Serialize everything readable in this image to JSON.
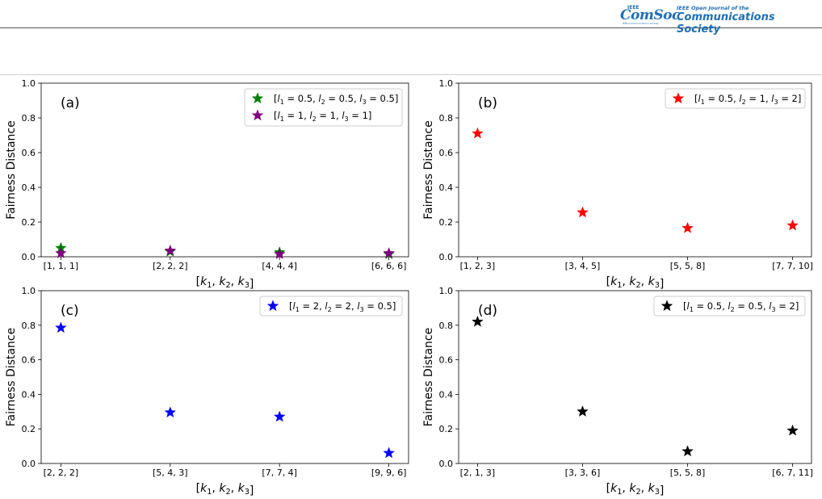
{
  "header": {
    "logo_ieee": "IEEE",
    "logo_comsoc": "ComSoc",
    "logo_comsoc_sub": "IEEE Communications Society",
    "journal_top": "IEEE Open Journal of the",
    "journal_main": "Communications Society"
  },
  "chart_data": [
    {
      "type": "scatter",
      "panel_label": "(a)",
      "xlabel": "[k1, k2, k3]",
      "ylabel": "Fairness Distance",
      "categories": [
        "[1, 1, 1]",
        "[2, 2, 2]",
        "[4, 4, 4]",
        "[6, 6, 6]"
      ],
      "ylim": [
        0,
        1.0
      ],
      "yticks": [
        "0.0",
        "0.2",
        "0.4",
        "0.6",
        "0.8",
        "1.0"
      ],
      "grid": false,
      "legend_position": "top-right",
      "series": [
        {
          "name": "[l1 = 0.5, l2 = 0.5, l3 = 0.5]",
          "legend_parts": [
            "1",
            "0.5",
            "2",
            "0.5",
            "3",
            "0.5"
          ],
          "color": "#008000",
          "marker": "star",
          "values": [
            0.05,
            0.03,
            0.025,
            0.015
          ]
        },
        {
          "name": "[l1 = 1, l2 = 1, l3 = 1]",
          "legend_parts": [
            "1",
            "1",
            "2",
            "1",
            "3",
            "1"
          ],
          "color": "#800080",
          "marker": "star",
          "values": [
            0.02,
            0.035,
            0.015,
            0.02
          ]
        }
      ]
    },
    {
      "type": "scatter",
      "panel_label": "(b)",
      "xlabel": "[k1, k2, k3]",
      "ylabel": "Fairness Distance",
      "categories": [
        "[1, 2, 3]",
        "[3, 4, 5]",
        "[5, 5, 8]",
        "[7, 7, 10]"
      ],
      "ylim": [
        0,
        1.0
      ],
      "yticks": [
        "0.0",
        "0.2",
        "0.4",
        "0.6",
        "0.8",
        "1.0"
      ],
      "grid": false,
      "legend_position": "top-right",
      "series": [
        {
          "name": "[l1 = 0.5, l2 = 1, l3 = 2]",
          "legend_parts": [
            "1",
            "0.5",
            "2",
            "1",
            "3",
            "2"
          ],
          "color": "#ff0000",
          "marker": "star",
          "values": [
            0.71,
            0.255,
            0.165,
            0.18
          ]
        }
      ]
    },
    {
      "type": "scatter",
      "panel_label": "(c)",
      "xlabel": "[k1, k2, k3]",
      "ylabel": "Fairness Distance",
      "categories": [
        "[2, 2, 2]",
        "[5, 4, 3]",
        "[7, 7, 4]",
        "[9, 9, 6]"
      ],
      "ylim": [
        0,
        1.0
      ],
      "yticks": [
        "0.0",
        "0.2",
        "0.4",
        "0.6",
        "0.8",
        "1.0"
      ],
      "grid": false,
      "legend_position": "top-right",
      "series": [
        {
          "name": "[l1 = 2, l2 = 2, l3 = 0.5]",
          "legend_parts": [
            "1",
            "2",
            "2",
            "2",
            "3",
            "0.5"
          ],
          "color": "#0000ff",
          "marker": "star",
          "values": [
            0.785,
            0.295,
            0.27,
            0.06
          ]
        }
      ]
    },
    {
      "type": "scatter",
      "panel_label": "(d)",
      "xlabel": "[k1, k2, k3]",
      "ylabel": "Fairness Distance",
      "categories": [
        "[2, 1, 3]",
        "[3, 3, 6]",
        "[5, 5, 8]",
        "[6, 7, 11]"
      ],
      "ylim": [
        0,
        1.0
      ],
      "yticks": [
        "0.0",
        "0.2",
        "0.4",
        "0.6",
        "0.8",
        "1.0"
      ],
      "grid": false,
      "legend_position": "top-right",
      "series": [
        {
          "name": "[l1 = 0.5, l2 = 0.5, l3 = 2]",
          "legend_parts": [
            "1",
            "0.5",
            "2",
            "0.5",
            "3",
            "2"
          ],
          "color": "#000000",
          "marker": "star",
          "values": [
            0.82,
            0.3,
            0.07,
            0.19
          ]
        }
      ]
    }
  ]
}
